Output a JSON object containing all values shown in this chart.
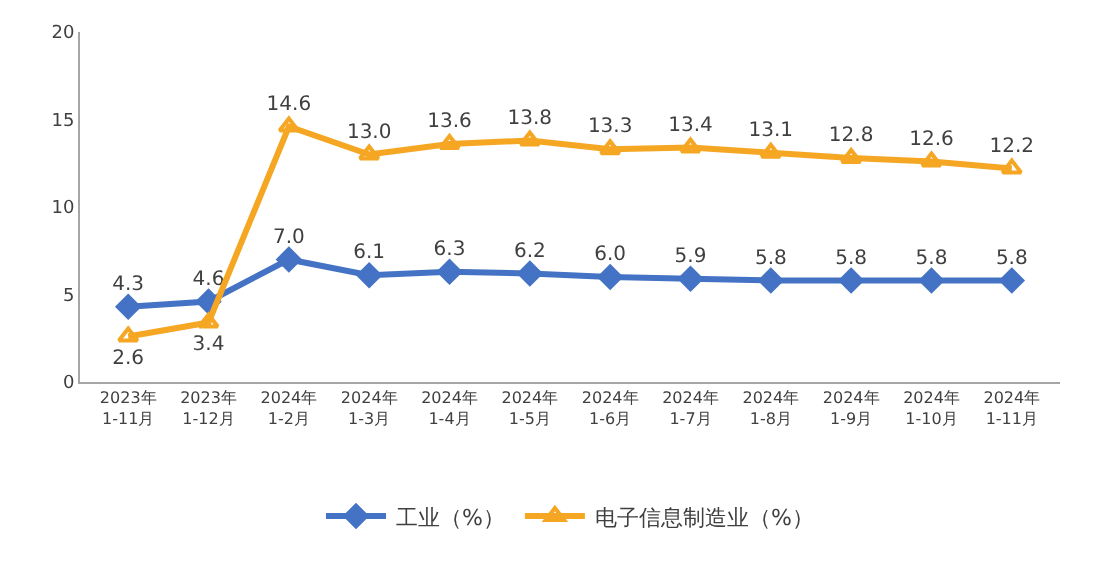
{
  "chart_data": {
    "type": "line",
    "categories": [
      "2023年\n1-11月",
      "2023年\n1-12月",
      "2024年\n1-2月",
      "2024年\n1-3月",
      "2024年\n1-4月",
      "2024年\n1-5月",
      "2024年\n1-6月",
      "2024年\n1-7月",
      "2024年\n1-8月",
      "2024年\n1-9月",
      "2024年\n1-10月",
      "2024年\n1-11月"
    ],
    "series": [
      {
        "name": "工业（%）",
        "color": "#4472c4",
        "marker": "diamond",
        "values": [
          4.3,
          4.6,
          7.0,
          6.1,
          6.3,
          6.2,
          6.0,
          5.9,
          5.8,
          5.8,
          5.8,
          5.8
        ],
        "value_labels": [
          "4.3",
          "4.6",
          "7.0",
          "6.1",
          "6.3",
          "6.2",
          "6.0",
          "5.9",
          "5.8",
          "5.8",
          "5.8",
          "5.8"
        ]
      },
      {
        "name": "电子信息制造业（%）",
        "color": "#f5a623",
        "marker": "triangle",
        "values": [
          2.6,
          3.4,
          14.6,
          13.0,
          13.6,
          13.8,
          13.3,
          13.4,
          13.1,
          12.8,
          12.6,
          12.2
        ],
        "value_labels": [
          "2.6",
          "3.4",
          "14.6",
          "13.0",
          "13.6",
          "13.8",
          "13.3",
          "13.4",
          "13.1",
          "12.8",
          "12.6",
          "12.2"
        ]
      }
    ],
    "ylim": [
      0,
      20
    ],
    "yticks": [
      0,
      5,
      10,
      15,
      20
    ],
    "grid": false,
    "legend": "bottom",
    "line_style": "solid"
  }
}
